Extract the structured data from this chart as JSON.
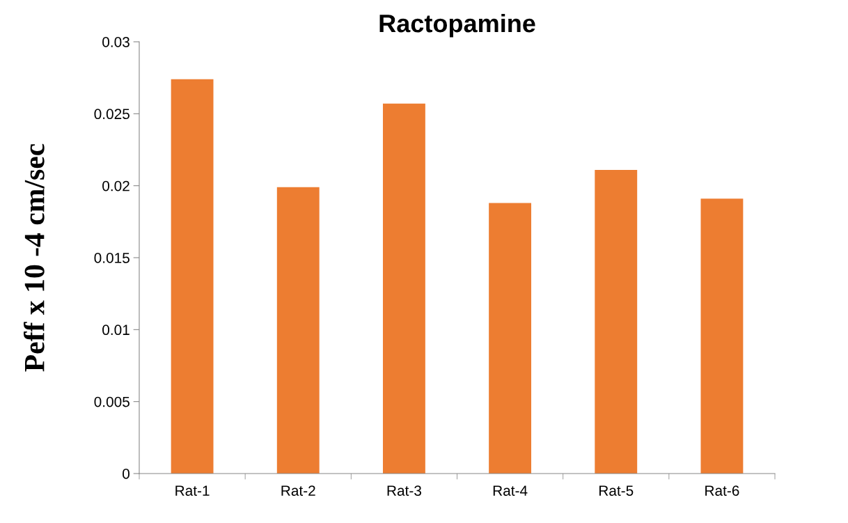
{
  "chart_data": {
    "type": "bar",
    "title": "Ractopamine",
    "ylabel": "Peff x 10 -4 cm/sec",
    "categories": [
      "Rat-1",
      "Rat-2",
      "Rat-3",
      "Rat-4",
      "Rat-5",
      "Rat-6"
    ],
    "values": [
      0.0274,
      0.0199,
      0.0257,
      0.0188,
      0.0211,
      0.0191
    ],
    "color": "#ed7d31",
    "ylim": [
      0,
      0.03
    ],
    "yticks": [
      0,
      0.005,
      0.01,
      0.015,
      0.02,
      0.025,
      0.03
    ],
    "grid": false,
    "legend": false
  }
}
